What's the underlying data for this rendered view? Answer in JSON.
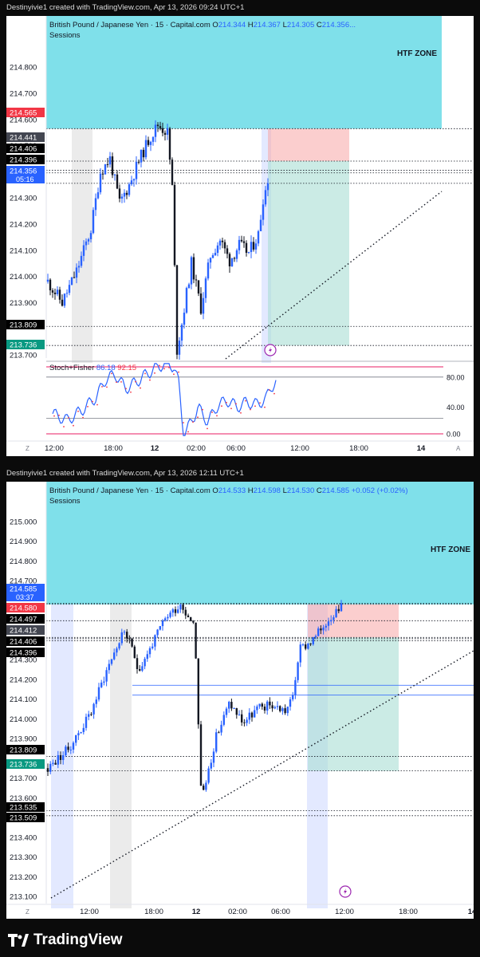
{
  "charts": [
    {
      "attribution": "Destinyivie1 created with TradingView.com, Apr 13, 2026 09:24 UTC+1",
      "legend_symbol": "British Pound / Japanese Yen · 15 · Capital.com",
      "ohlc": [
        {
          "k": "O",
          "v": "214.344"
        },
        {
          "k": "H",
          "v": "214.367"
        },
        {
          "k": "L",
          "v": "214.305"
        },
        {
          "k": "C",
          "v": "214.356..."
        }
      ],
      "change": "",
      "sessions_label": "Sessions",
      "zone_label": "HTF ZONE",
      "y_ticks": [
        "214.800",
        "214.700",
        "214.600",
        "214.500",
        "214.300",
        "214.200",
        "214.100",
        "214.000",
        "213.900",
        "213.700"
      ],
      "price_badges": [
        {
          "text": "214.565",
          "color": "#f23645"
        },
        {
          "text": "214.441",
          "color": "#434651"
        },
        {
          "text": "214.406",
          "color": "#000000"
        },
        {
          "text": "214.396",
          "color": "#000000"
        },
        {
          "text": "214.356",
          "sub": "05:16",
          "color": "#2962ff"
        },
        {
          "text": "213.809",
          "color": "#000000"
        },
        {
          "text": "213.736",
          "color": "#089981"
        }
      ],
      "x_ticks": [
        "12:00",
        "18:00",
        "12",
        "02:00",
        "06:00",
        "12:00",
        "18:00",
        "14"
      ],
      "indicator": {
        "name": "Stoch+Fisher",
        "value1": "86.18",
        "value2": "92.15",
        "levels": [
          "80.00",
          "40.00",
          "0.00"
        ]
      },
      "bottom_left": "Z",
      "bottom_right": "A"
    },
    {
      "attribution": "Destinyivie1 created with TradingView.com, Apr 13, 2026 12:11 UTC+1",
      "legend_symbol": "British Pound / Japanese Yen · 15 · Capital.com",
      "ohlc": [
        {
          "k": "O",
          "v": "214.533"
        },
        {
          "k": "H",
          "v": "214.598"
        },
        {
          "k": "L",
          "v": "214.530"
        },
        {
          "k": "C",
          "v": "214.585"
        }
      ],
      "change": "+0.052 (+0.02%)",
      "sessions_label": "Sessions",
      "zone_label": "HTF ZONE",
      "y_ticks": [
        "215.000",
        "214.900",
        "214.800",
        "214.700",
        "214.300",
        "214.200",
        "214.100",
        "214.000",
        "213.900",
        "213.700",
        "213.600",
        "213.400",
        "213.300",
        "213.200",
        "213.100"
      ],
      "price_badges": [
        {
          "text": "214.585",
          "sub": "03:37",
          "color": "#2962ff"
        },
        {
          "text": "214.580",
          "color": "#f23645"
        },
        {
          "text": "214.497",
          "color": "#000000"
        },
        {
          "text": "214.412",
          "color": "#434651"
        },
        {
          "text": "214.406",
          "color": "#000000"
        },
        {
          "text": "214.396",
          "color": "#000000"
        },
        {
          "text": "213.809",
          "color": "#000000"
        },
        {
          "text": "213.736",
          "color": "#089981"
        },
        {
          "text": "213.535",
          "color": "#000000"
        },
        {
          "text": "213.509",
          "color": "#000000"
        }
      ],
      "x_ticks": [
        "12:00",
        "18:00",
        "12",
        "02:00",
        "06:00",
        "12:00",
        "18:00",
        "14"
      ],
      "bottom_left": "Z"
    }
  ],
  "chart_data": [
    {
      "type": "candlestick",
      "symbol": "GBPJPY",
      "timeframe": "15",
      "x_ticks": [
        "12:00",
        "18:00",
        "12",
        "02:00",
        "06:00",
        "12:00",
        "18:00",
        "14"
      ],
      "ylim": [
        213.7,
        214.88
      ],
      "last_close": 214.356,
      "levels": [
        214.565,
        214.441,
        214.406,
        214.396,
        214.356,
        213.809,
        213.736
      ],
      "zone_bottom": 214.565,
      "position": {
        "entry": 214.441,
        "stop": 214.565,
        "target": 213.736
      },
      "path": [
        [
          0,
          213.98
        ],
        [
          3,
          213.9
        ],
        [
          6,
          214.02
        ],
        [
          9,
          214.18
        ],
        [
          11,
          214.4
        ],
        [
          13,
          214.45
        ],
        [
          15,
          214.28
        ],
        [
          17,
          214.35
        ],
        [
          19,
          214.44
        ],
        [
          21,
          214.52
        ],
        [
          23,
          214.58
        ],
        [
          25,
          214.55
        ],
        [
          26,
          214.34
        ],
        [
          27,
          213.72
        ],
        [
          28,
          213.82
        ],
        [
          30,
          214.05
        ],
        [
          32,
          213.88
        ],
        [
          34,
          214.08
        ],
        [
          36,
          214.14
        ],
        [
          38,
          214.06
        ],
        [
          40,
          214.12
        ],
        [
          42,
          214.09
        ],
        [
          44,
          214.16
        ],
        [
          45,
          214.3
        ],
        [
          46,
          214.36
        ]
      ],
      "path_x_units": "hours from first candle (approx.)",
      "indicator": {
        "name": "Stoch+Fisher",
        "value1": 86.18,
        "value2": 92.15,
        "ylim": [
          0,
          100
        ]
      }
    },
    {
      "type": "candlestick",
      "symbol": "GBPJPY",
      "timeframe": "15",
      "x_ticks": [
        "12:00",
        "18:00",
        "12",
        "02:00",
        "06:00",
        "12:00",
        "18:00",
        "14"
      ],
      "ylim": [
        213.08,
        215.08
      ],
      "last_close": 214.585,
      "levels": [
        214.585,
        214.58,
        214.497,
        214.412,
        214.406,
        214.396,
        213.809,
        213.736,
        213.535,
        213.509
      ],
      "zone_bottom": 214.58,
      "position": {
        "entry": 214.412,
        "stop": 214.58,
        "target": 213.736
      },
      "path": [
        [
          0,
          213.75
        ],
        [
          3,
          213.85
        ],
        [
          6,
          214.02
        ],
        [
          9,
          214.3
        ],
        [
          11,
          214.45
        ],
        [
          13,
          214.25
        ],
        [
          15,
          214.38
        ],
        [
          17,
          214.52
        ],
        [
          19,
          214.58
        ],
        [
          21,
          214.48
        ],
        [
          22,
          213.58
        ],
        [
          24,
          213.9
        ],
        [
          26,
          214.08
        ],
        [
          28,
          213.98
        ],
        [
          30,
          214.05
        ],
        [
          32,
          214.07
        ],
        [
          34,
          214.04
        ],
        [
          35,
          214.1
        ],
        [
          36,
          214.35
        ],
        [
          38,
          214.4
        ],
        [
          40,
          214.5
        ],
        [
          42,
          214.585
        ]
      ],
      "path_x_units": "hours from first candle (approx.)"
    }
  ]
}
